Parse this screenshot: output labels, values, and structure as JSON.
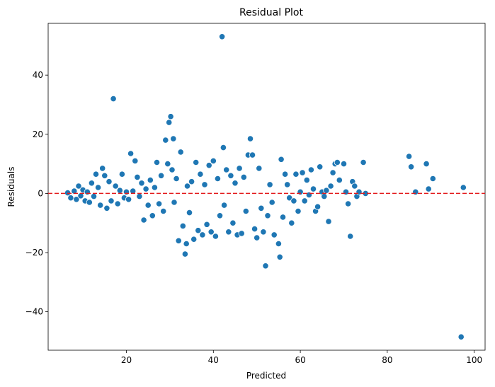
{
  "chart_data": {
    "type": "scatter",
    "title": "Residual Plot",
    "xlabel": "Predicted",
    "ylabel": "Residuals",
    "xlim": [
      2,
      102.5
    ],
    "ylim": [
      -53,
      57.5
    ],
    "xticks": [
      20,
      40,
      60,
      80,
      100
    ],
    "yticks": [
      -40,
      -20,
      0,
      20,
      40
    ],
    "grid": false,
    "marker_color": "#1f77b4",
    "reference_line": {
      "y": 0,
      "color": "#e31a1c",
      "style": "dashed"
    },
    "points": [
      [
        6.5,
        0.2
      ],
      [
        7.2,
        -1.5
      ],
      [
        8.0,
        0.8
      ],
      [
        8.5,
        -2.0
      ],
      [
        9.0,
        2.5
      ],
      [
        9.5,
        -0.8
      ],
      [
        10.0,
        1.2
      ],
      [
        10.5,
        -2.5
      ],
      [
        11.0,
        0.5
      ],
      [
        11.5,
        -3.0
      ],
      [
        12.0,
        3.5
      ],
      [
        12.5,
        -1.0
      ],
      [
        13.0,
        6.5
      ],
      [
        13.5,
        2.0
      ],
      [
        14.0,
        -4.0
      ],
      [
        14.5,
        8.5
      ],
      [
        15.0,
        6.0
      ],
      [
        15.5,
        -5.0
      ],
      [
        16.0,
        4.0
      ],
      [
        16.5,
        -2.5
      ],
      [
        17.0,
        32.0
      ],
      [
        17.5,
        2.5
      ],
      [
        18.0,
        -3.5
      ],
      [
        18.5,
        1.0
      ],
      [
        19.0,
        6.5
      ],
      [
        19.5,
        -1.5
      ],
      [
        20.0,
        0.5
      ],
      [
        20.5,
        -2.0
      ],
      [
        21.0,
        13.5
      ],
      [
        21.5,
        0.8
      ],
      [
        22.0,
        11.0
      ],
      [
        22.5,
        5.5
      ],
      [
        23.0,
        -1.0
      ],
      [
        23.5,
        3.5
      ],
      [
        24.0,
        -9.0
      ],
      [
        24.5,
        1.5
      ],
      [
        25.0,
        -4.0
      ],
      [
        25.5,
        4.5
      ],
      [
        26.0,
        -7.5
      ],
      [
        26.5,
        2.0
      ],
      [
        27.0,
        10.5
      ],
      [
        27.5,
        -3.5
      ],
      [
        28.0,
        6.0
      ],
      [
        28.5,
        -6.0
      ],
      [
        29.0,
        18.0
      ],
      [
        29.5,
        10.0
      ],
      [
        29.8,
        24.0
      ],
      [
        30.2,
        26.0
      ],
      [
        30.5,
        8.0
      ],
      [
        30.8,
        18.5
      ],
      [
        31.0,
        -3.0
      ],
      [
        31.5,
        5.0
      ],
      [
        32.0,
        -16.0
      ],
      [
        32.5,
        14.0
      ],
      [
        33.0,
        -11.0
      ],
      [
        33.5,
        -20.5
      ],
      [
        33.8,
        -17.0
      ],
      [
        34.0,
        2.5
      ],
      [
        34.5,
        -6.5
      ],
      [
        35.0,
        4.0
      ],
      [
        35.5,
        -15.5
      ],
      [
        36.0,
        10.5
      ],
      [
        36.5,
        -12.5
      ],
      [
        37.0,
        6.5
      ],
      [
        37.5,
        -14.0
      ],
      [
        38.0,
        3.0
      ],
      [
        38.5,
        -10.5
      ],
      [
        39.0,
        9.5
      ],
      [
        39.5,
        -13.0
      ],
      [
        40.0,
        11.0
      ],
      [
        40.5,
        -14.5
      ],
      [
        41.0,
        5.0
      ],
      [
        41.5,
        -7.5
      ],
      [
        42.0,
        53.0
      ],
      [
        42.3,
        15.5
      ],
      [
        42.5,
        -4.0
      ],
      [
        43.0,
        8.0
      ],
      [
        43.5,
        -13.0
      ],
      [
        44.0,
        6.0
      ],
      [
        44.5,
        -10.0
      ],
      [
        45.0,
        3.5
      ],
      [
        45.5,
        -14.0
      ],
      [
        46.0,
        8.5
      ],
      [
        46.5,
        -13.5
      ],
      [
        47.0,
        5.5
      ],
      [
        47.5,
        -6.0
      ],
      [
        48.0,
        13.0
      ],
      [
        48.5,
        18.5
      ],
      [
        49.0,
        13.0
      ],
      [
        49.5,
        -12.0
      ],
      [
        50.0,
        -15.0
      ],
      [
        50.5,
        8.5
      ],
      [
        51.0,
        -5.0
      ],
      [
        51.5,
        -13.0
      ],
      [
        52.0,
        -24.5
      ],
      [
        52.5,
        -7.5
      ],
      [
        53.0,
        3.0
      ],
      [
        53.5,
        -3.0
      ],
      [
        54.0,
        -14.0
      ],
      [
        55.0,
        -17.0
      ],
      [
        55.3,
        -21.5
      ],
      [
        55.6,
        11.5
      ],
      [
        56.0,
        -8.0
      ],
      [
        56.5,
        6.5
      ],
      [
        57.0,
        3.0
      ],
      [
        57.5,
        -1.5
      ],
      [
        58.0,
        -10.0
      ],
      [
        58.5,
        -2.5
      ],
      [
        59.0,
        6.5
      ],
      [
        59.5,
        -6.0
      ],
      [
        60.0,
        0.5
      ],
      [
        60.5,
        7.0
      ],
      [
        61.0,
        -2.5
      ],
      [
        61.5,
        4.5
      ],
      [
        62.0,
        -0.5
      ],
      [
        62.5,
        8.0
      ],
      [
        63.0,
        1.5
      ],
      [
        63.5,
        -6.0
      ],
      [
        64.0,
        -4.5
      ],
      [
        64.5,
        9.0
      ],
      [
        65.0,
        0.5
      ],
      [
        65.5,
        -1.0
      ],
      [
        66.0,
        1.0
      ],
      [
        66.5,
        -9.5
      ],
      [
        67.0,
        2.5
      ],
      [
        67.5,
        7.0
      ],
      [
        68.0,
        10.0
      ],
      [
        68.5,
        10.5
      ],
      [
        69.0,
        4.5
      ],
      [
        70.0,
        10.0
      ],
      [
        70.5,
        0.5
      ],
      [
        71.0,
        -3.5
      ],
      [
        71.5,
        -14.5
      ],
      [
        72.0,
        4.0
      ],
      [
        72.5,
        2.5
      ],
      [
        73.0,
        -1.0
      ],
      [
        73.5,
        0.5
      ],
      [
        74.5,
        10.5
      ],
      [
        75.0,
        0.0
      ],
      [
        85.0,
        12.5
      ],
      [
        85.5,
        9.0
      ],
      [
        86.5,
        0.5
      ],
      [
        89.0,
        10.0
      ],
      [
        89.5,
        1.5
      ],
      [
        90.5,
        5.0
      ],
      [
        97.0,
        -48.5
      ],
      [
        97.5,
        2.0
      ]
    ]
  }
}
